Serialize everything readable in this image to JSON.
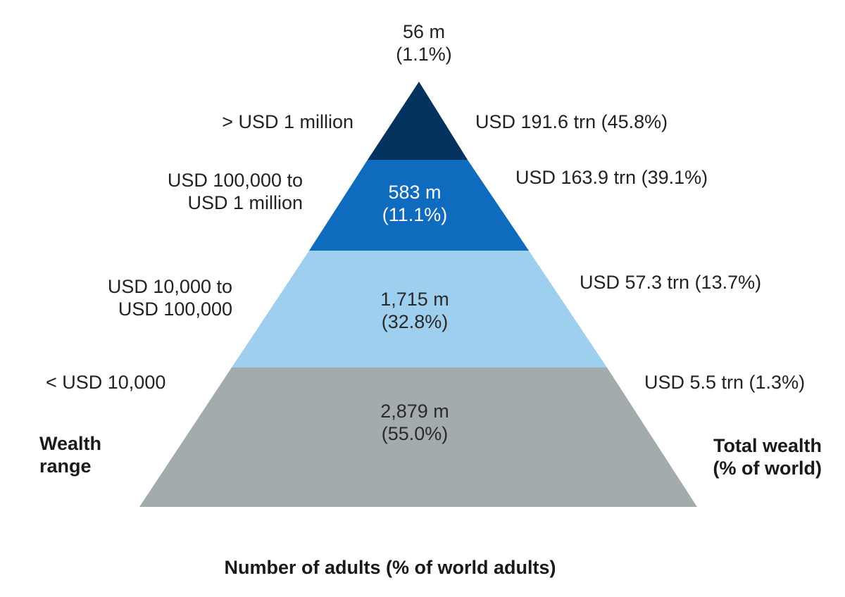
{
  "tiers": [
    {
      "wealth_range": [
        "> USD 1 million"
      ],
      "adults": "56 m",
      "adults_pct": "(1.1%)",
      "total_wealth": "USD 191.6 trn (45.8%)",
      "adults_share": 1.1,
      "color": "#04325f"
    },
    {
      "wealth_range": [
        "USD 100,000 to",
        "USD 1 million"
      ],
      "adults": "583 m",
      "adults_pct": "(11.1%)",
      "total_wealth": "USD 163.9 trn (39.1%)",
      "adults_share": 11.1,
      "color": "#0e6bbd"
    },
    {
      "wealth_range": [
        "USD 10,000 to",
        "USD 100,000"
      ],
      "adults": "1,715 m",
      "adults_pct": "(32.8%)",
      "total_wealth": "USD 57.3 trn (13.7%)",
      "adults_share": 32.8,
      "color": "#9fcfee"
    },
    {
      "wealth_range": [
        "< USD 10,000"
      ],
      "adults": "2,879 m",
      "adults_pct": "(55.0%)",
      "total_wealth": "USD 5.5 trn (1.3%)",
      "adults_share": 55.0,
      "color": "#a4abac"
    }
  ],
  "left_heading": [
    "Wealth",
    "range"
  ],
  "right_heading": [
    "Total wealth",
    "(% of world)"
  ],
  "bottom_caption": "Number of adults (% of world adults)"
}
